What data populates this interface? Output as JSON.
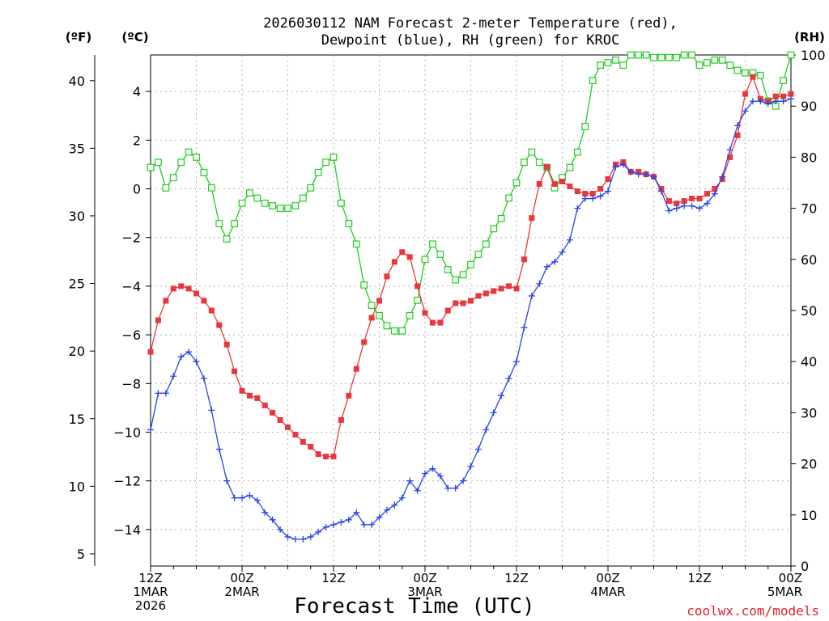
{
  "chart_data": {
    "type": "line",
    "title_line1": "2026030112 NAM Forecast 2-meter Temperature (red),",
    "title_line2": "Dewpoint (blue), RH (green) for KROC",
    "xlabel": "Forecast Time (UTC)",
    "credit": "coolwx.com/models",
    "units": {
      "fahrenheit": "(ºF)",
      "celsius": "(ºC)",
      "rh": "(RH)"
    },
    "x_hours_range": [
      0,
      84
    ],
    "celsius_range": [
      -15.5,
      5.5
    ],
    "rh_range": [
      0,
      100
    ],
    "celsius_ticks": [
      {
        "v": 4,
        "label": "4"
      },
      {
        "v": 2,
        "label": "2"
      },
      {
        "v": 0,
        "label": "0"
      },
      {
        "v": -2,
        "label": "−2"
      },
      {
        "v": -4,
        "label": "−4"
      },
      {
        "v": -6,
        "label": "−6"
      },
      {
        "v": -8,
        "label": "−8"
      },
      {
        "v": -10,
        "label": "−10"
      },
      {
        "v": -12,
        "label": "−12"
      },
      {
        "v": -14,
        "label": "−14"
      }
    ],
    "fahrenheit_ticks": [
      {
        "v": 40,
        "label": "40"
      },
      {
        "v": 35,
        "label": "35"
      },
      {
        "v": 30,
        "label": "30"
      },
      {
        "v": 25,
        "label": "25"
      },
      {
        "v": 20,
        "label": "20"
      },
      {
        "v": 15,
        "label": "15"
      },
      {
        "v": 10,
        "label": "10"
      },
      {
        "v": 5,
        "label": "5"
      }
    ],
    "rh_ticks": [
      {
        "v": 100,
        "label": "100"
      },
      {
        "v": 90,
        "label": "90"
      },
      {
        "v": 80,
        "label": "80"
      },
      {
        "v": 70,
        "label": "70"
      },
      {
        "v": 60,
        "label": "60"
      },
      {
        "v": 50,
        "label": "50"
      },
      {
        "v": 40,
        "label": "40"
      },
      {
        "v": 30,
        "label": "30"
      },
      {
        "v": 20,
        "label": "20"
      },
      {
        "v": 10,
        "label": "10"
      },
      {
        "v": 0,
        "label": "0"
      }
    ],
    "x_ticks": [
      {
        "h": 0,
        "lines": [
          "12Z",
          "1MAR",
          "2026"
        ]
      },
      {
        "h": 12,
        "lines": [
          "00Z",
          "2MAR"
        ]
      },
      {
        "h": 24,
        "lines": [
          "12Z"
        ]
      },
      {
        "h": 36,
        "lines": [
          "00Z",
          "3MAR"
        ]
      },
      {
        "h": 48,
        "lines": [
          "12Z"
        ]
      },
      {
        "h": 60,
        "lines": [
          "00Z",
          "4MAR"
        ]
      },
      {
        "h": 72,
        "lines": [
          "12Z"
        ]
      },
      {
        "h": 84,
        "lines": [
          "00Z",
          "5MAR"
        ]
      }
    ],
    "series": [
      {
        "name": "2-meter Temperature (°C)",
        "color": "#e8383d",
        "marker": "filled-square",
        "values": [
          -6.7,
          -5.4,
          -4.6,
          -4.1,
          -4.0,
          -4.1,
          -4.3,
          -4.6,
          -5.0,
          -5.6,
          -6.4,
          -7.5,
          -8.3,
          -8.5,
          -8.6,
          -8.9,
          -9.2,
          -9.5,
          -9.8,
          -10.1,
          -10.4,
          -10.6,
          -10.9,
          -11.0,
          -11.0,
          -9.5,
          -8.5,
          -7.4,
          -6.3,
          -5.3,
          -4.6,
          -3.6,
          -3.0,
          -2.6,
          -2.8,
          -4.0,
          -5.1,
          -5.5,
          -5.5,
          -5.0,
          -4.7,
          -4.7,
          -4.6,
          -4.4,
          -4.3,
          -4.2,
          -4.1,
          -4.0,
          -4.1,
          -2.9,
          -1.2,
          0.2,
          0.9,
          0.2,
          0.3,
          0.1,
          -0.1,
          -0.2,
          -0.2,
          0.0,
          0.4,
          1.0,
          1.1,
          0.7,
          0.7,
          0.6,
          0.5,
          0.0,
          -0.5,
          -0.6,
          -0.5,
          -0.4,
          -0.4,
          -0.2,
          0.0,
          0.4,
          1.3,
          2.2,
          3.9,
          4.6,
          3.7,
          3.6,
          3.8,
          3.8,
          3.9
        ]
      },
      {
        "name": "Dewpoint (°C)",
        "color": "#2b44e6",
        "marker": "plus",
        "values": [
          -9.9,
          -8.4,
          -8.4,
          -7.7,
          -6.9,
          -6.7,
          -7.1,
          -7.8,
          -9.1,
          -10.7,
          -12.0,
          -12.7,
          -12.7,
          -12.6,
          -12.8,
          -13.3,
          -13.6,
          -14.0,
          -14.3,
          -14.4,
          -14.4,
          -14.3,
          -14.1,
          -13.9,
          -13.8,
          -13.7,
          -13.6,
          -13.3,
          -13.8,
          -13.8,
          -13.5,
          -13.2,
          -13.0,
          -12.7,
          -12.0,
          -12.4,
          -11.7,
          -11.5,
          -11.8,
          -12.3,
          -12.3,
          -12.0,
          -11.4,
          -10.7,
          -9.9,
          -9.2,
          -8.5,
          -7.8,
          -7.1,
          -5.7,
          -4.4,
          -3.9,
          -3.2,
          -3.0,
          -2.6,
          -2.1,
          -0.8,
          -0.4,
          -0.4,
          -0.3,
          -0.1,
          0.9,
          1.0,
          0.7,
          0.6,
          0.6,
          0.5,
          -0.1,
          -0.9,
          -0.8,
          -0.7,
          -0.7,
          -0.8,
          -0.6,
          -0.2,
          0.5,
          1.6,
          2.6,
          3.2,
          3.6,
          3.6,
          3.5,
          3.6,
          3.6,
          3.7
        ]
      },
      {
        "name": "Relative Humidity (%)",
        "color": "#22cc22",
        "marker": "open-square",
        "values": [
          78,
          79,
          74,
          76,
          79,
          81,
          80,
          77,
          74,
          67,
          64,
          67,
          71,
          73,
          72,
          71,
          70.5,
          70,
          70,
          70.5,
          72,
          74,
          77,
          79,
          80,
          71,
          67,
          63,
          55,
          51,
          49,
          47,
          46,
          46,
          49,
          52,
          60,
          63,
          61,
          58,
          56,
          57,
          59,
          61,
          63,
          66,
          68,
          72,
          75,
          79,
          81,
          79,
          78,
          74,
          76,
          78,
          81,
          86,
          95,
          98,
          98.5,
          99,
          98,
          100,
          100,
          100,
          99.5,
          99.5,
          99.5,
          99.5,
          100,
          100,
          98,
          98.5,
          99,
          99,
          98,
          97,
          96.5,
          96.5,
          96,
          91,
          90,
          95,
          100
        ]
      }
    ]
  }
}
